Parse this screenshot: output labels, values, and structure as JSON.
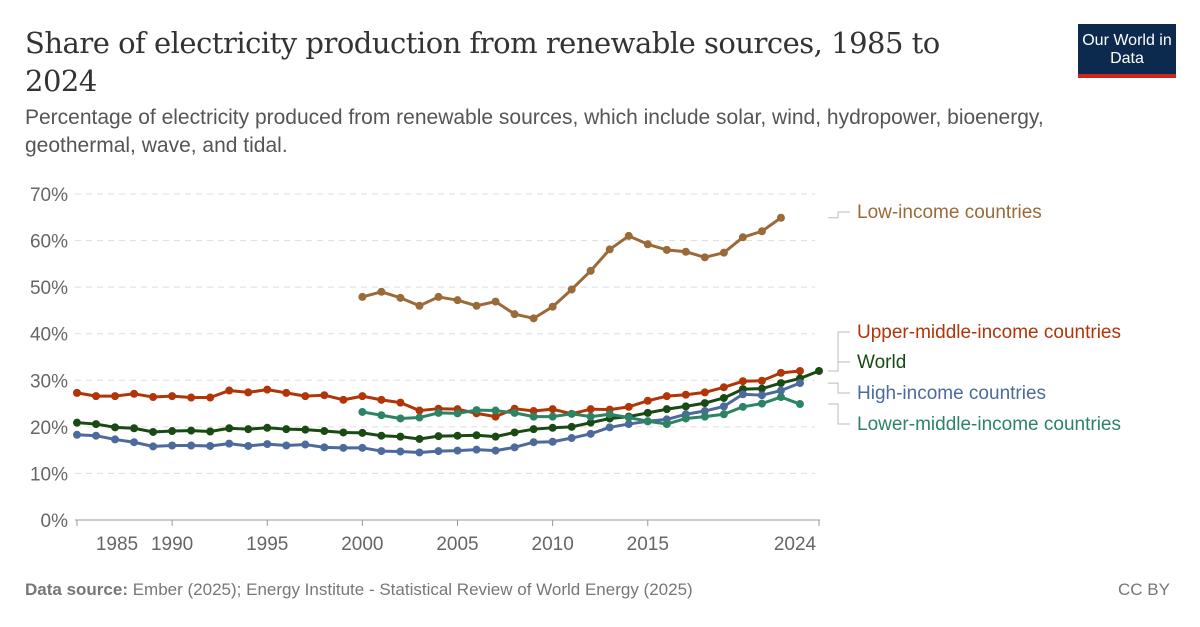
{
  "header": {
    "title": "Share of electricity production from renewable sources, 1985 to 2024",
    "subtitle": "Percentage of electricity produced from renewable sources, which include solar, wind, hydropower, bioenergy, geothermal, wave, and tidal.",
    "logo": "Our World in Data"
  },
  "footer": {
    "source_label": "Data source:",
    "source": "Ember (2025); Energy Institute - Statistical Review of World Energy (2025)",
    "license": "CC BY"
  },
  "chart_data": {
    "type": "line",
    "title": "Share of electricity production from renewable sources, 1985 to 2024",
    "xlim": [
      1985,
      2024
    ],
    "ylim": [
      0,
      70
    ],
    "grid": "horizontal dashed",
    "legend": "right, inline labels",
    "x_ticks": [
      "1985",
      "1990",
      "1995",
      "2000",
      "2005",
      "2010",
      "2015",
      "2024"
    ],
    "y_ticks": [
      "0%",
      "10%",
      "20%",
      "30%",
      "40%",
      "50%",
      "60%",
      "70%"
    ],
    "series": [
      {
        "name": "Low-income countries",
        "color": "#9a6a38",
        "start": 2000,
        "values": [
          47.9,
          49.0,
          47.7,
          46.0,
          47.9,
          47.2,
          46.0,
          46.9,
          44.2,
          43.3,
          45.8,
          49.5,
          53.5,
          58.1,
          61.0,
          59.2,
          58.0,
          57.6,
          56.4,
          57.4,
          60.7,
          62.0,
          64.9
        ]
      },
      {
        "name": "Upper-middle-income countries",
        "color": "#b13507",
        "start": 1985,
        "values": [
          27.3,
          26.6,
          26.6,
          27.1,
          26.4,
          26.6,
          26.3,
          26.3,
          27.8,
          27.4,
          28.0,
          27.3,
          26.6,
          26.8,
          25.8,
          26.6,
          25.8,
          25.2,
          23.5,
          23.9,
          23.8,
          22.9,
          22.2,
          23.9,
          23.4,
          23.8,
          22.8,
          23.8,
          23.7,
          24.3,
          25.6,
          26.6,
          26.9,
          27.4,
          28.5,
          29.8,
          29.9,
          31.6,
          32.0
        ]
      },
      {
        "name": "World",
        "color": "#1a4a14",
        "start": 1985,
        "values": [
          20.9,
          20.6,
          19.9,
          19.7,
          18.9,
          19.1,
          19.2,
          19.0,
          19.7,
          19.5,
          19.8,
          19.5,
          19.4,
          19.1,
          18.8,
          18.7,
          18.1,
          17.9,
          17.4,
          18.0,
          18.1,
          18.2,
          17.9,
          18.8,
          19.5,
          19.8,
          20.0,
          20.9,
          21.8,
          22.2,
          23.0,
          23.8,
          24.4,
          25.1,
          26.2,
          28.1,
          28.2,
          29.4,
          30.4,
          32.0
        ]
      },
      {
        "name": "High-income countries",
        "color": "#4c6a9c",
        "start": 1985,
        "values": [
          18.3,
          18.1,
          17.3,
          16.7,
          15.8,
          16.0,
          16.0,
          15.9,
          16.4,
          15.9,
          16.3,
          16.0,
          16.2,
          15.6,
          15.5,
          15.5,
          14.8,
          14.7,
          14.5,
          14.8,
          14.9,
          15.1,
          14.9,
          15.6,
          16.7,
          16.8,
          17.6,
          18.5,
          19.9,
          20.6,
          21.2,
          21.6,
          22.7,
          23.4,
          24.4,
          27.0,
          26.8,
          27.8,
          29.4
        ]
      },
      {
        "name": "Lower-middle-income countries",
        "color": "#2c8465",
        "start": 2000,
        "values": [
          23.2,
          22.5,
          21.8,
          22.0,
          23.0,
          22.9,
          23.6,
          23.5,
          23.0,
          22.2,
          22.2,
          22.8,
          22.2,
          22.7,
          22.0,
          21.2,
          20.6,
          21.8,
          22.2,
          22.7,
          24.3,
          25.0,
          26.4,
          24.9
        ]
      }
    ]
  }
}
